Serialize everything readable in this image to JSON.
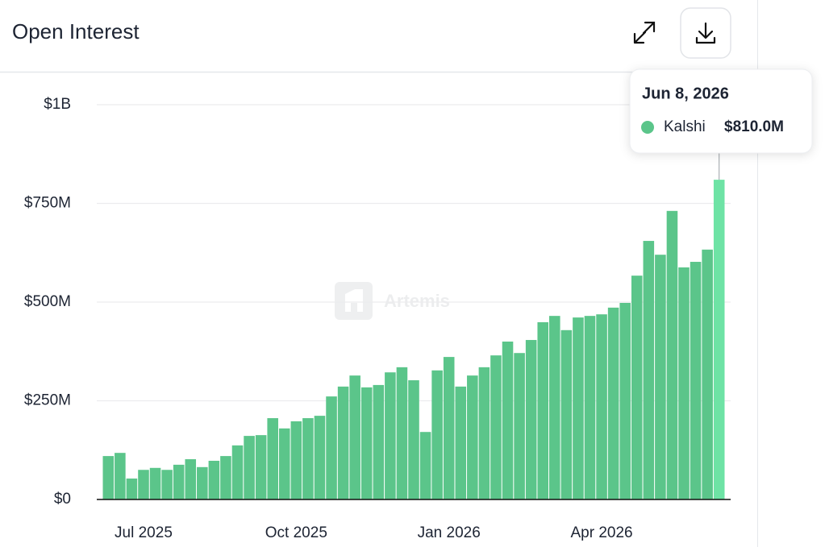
{
  "header": {
    "title": "Open Interest"
  },
  "watermark": "Artemis",
  "chart_data": {
    "type": "bar",
    "categories": [
      null,
      null,
      null,
      "Jul 2025",
      null,
      null,
      null,
      null,
      null,
      null,
      null,
      null,
      null,
      null,
      null,
      null,
      "Oct 2025",
      null,
      null,
      null,
      null,
      null,
      null,
      null,
      null,
      null,
      null,
      null,
      null,
      "Jan 2026",
      null,
      null,
      null,
      null,
      null,
      null,
      null,
      null,
      null,
      null,
      null,
      null,
      "Apr 2026",
      null,
      null,
      null,
      null,
      null,
      null,
      null,
      null,
      null,
      null
    ],
    "series": [
      {
        "name": "Kalshi",
        "color": "#5bc58a",
        "values": [
          110000000,
          118000000,
          53000000,
          75000000,
          80000000,
          75000000,
          88000000,
          102000000,
          82000000,
          98000000,
          110000000,
          137000000,
          161000000,
          163000000,
          206000000,
          180000000,
          198000000,
          206000000,
          212000000,
          261000000,
          286000000,
          314000000,
          284000000,
          290000000,
          322000000,
          335000000,
          302000000,
          171000000,
          327000000,
          361000000,
          286000000,
          314000000,
          335000000,
          365000000,
          400000000,
          371000000,
          404000000,
          449000000,
          465000000,
          429000000,
          461000000,
          465000000,
          469000000,
          486000000,
          498000000,
          567000000,
          655000000,
          620000000,
          731000000,
          588000000,
          602000000,
          633000000,
          810000000
        ],
        "value_labels": [
          null,
          null,
          null,
          null,
          null,
          null,
          null,
          null,
          null,
          null,
          null,
          null,
          null,
          null,
          null,
          null,
          null,
          null,
          null,
          null,
          null,
          null,
          null,
          null,
          null,
          null,
          null,
          null,
          null,
          null,
          null,
          null,
          null,
          null,
          null,
          null,
          null,
          null,
          null,
          null,
          null,
          null,
          null,
          null,
          null,
          null,
          null,
          null,
          null,
          null,
          null,
          null,
          "$810.0M"
        ]
      }
    ],
    "tooltip_date": "Jun 8, 2026",
    "ylim": [
      0,
      1000000000
    ],
    "yticks": [
      {
        "value": 0,
        "label": "$0"
      },
      {
        "value": 250000000,
        "label": "$250M"
      },
      {
        "value": 500000000,
        "label": "$500M"
      },
      {
        "value": 750000000,
        "label": "$750M"
      },
      {
        "value": 1000000000,
        "label": "$1B"
      }
    ],
    "grid": true
  }
}
